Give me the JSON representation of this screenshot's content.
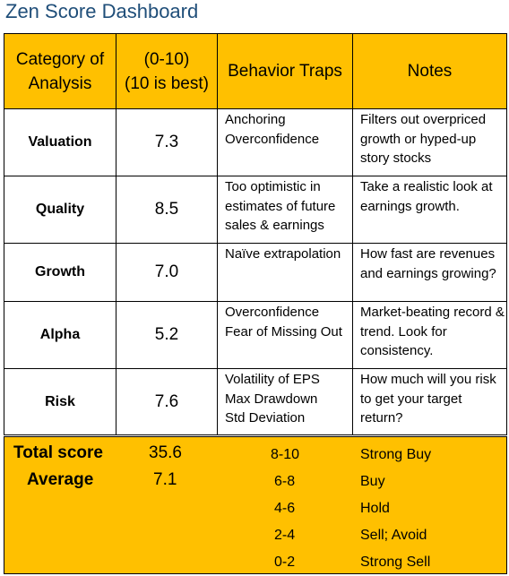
{
  "title": "Zen Score Dashboard",
  "headers": {
    "category": "Category of Analysis",
    "score": "(0-10)\n(10 is best)",
    "traps": "Behavior Traps",
    "notes": "Notes"
  },
  "rows": [
    {
      "category": "Valuation",
      "score": "7.3",
      "traps": "Anchoring\nOverconfidence",
      "notes": "Filters out overpriced growth or hyped-up story stocks"
    },
    {
      "category": "Quality",
      "score": "8.5",
      "traps": "Too optimistic in estimates of future sales & earnings",
      "notes": "Take a realistic look at earnings growth."
    },
    {
      "category": "Growth",
      "score": "7.0",
      "traps": "Naïve extrapolation",
      "notes": "How fast are revenues and earnings growing?"
    },
    {
      "category": "Alpha",
      "score": "5.2",
      "traps": "Overconfidence\nFear of Missing Out",
      "notes": "Market-beating record & trend. Look for consistency."
    },
    {
      "category": "Risk",
      "score": "7.6",
      "traps": "Volatility of EPS\nMax Drawdown\nStd Deviation",
      "notes": "How much will you risk to get your target return?"
    }
  ],
  "summary": {
    "total_label": "Total score",
    "total_value": "35.6",
    "average_label": "Average",
    "average_value": "7.1",
    "scale": [
      {
        "range": "8-10",
        "rating": "Strong Buy"
      },
      {
        "range": "6-8",
        "rating": "Buy"
      },
      {
        "range": "4-6",
        "rating": "Hold"
      },
      {
        "range": "2-4",
        "rating": "Sell; Avoid"
      },
      {
        "range": "0-2",
        "rating": "Strong Sell"
      }
    ]
  },
  "colors": {
    "header_bg": "#ffc000",
    "title": "#1f4e79"
  }
}
